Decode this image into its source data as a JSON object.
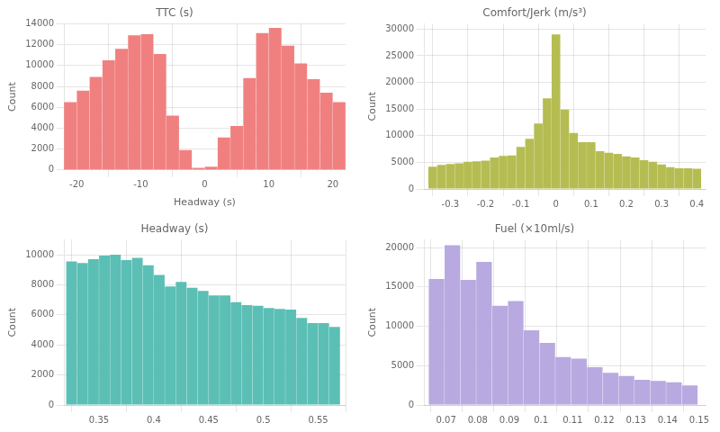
{
  "chart_data": [
    {
      "type": "bar",
      "title": "TTC (s)",
      "xlabel": "Headway (s)",
      "ylabel": "Count",
      "color": "#f08080",
      "x": [
        -21,
        -19,
        -17,
        -15,
        -13,
        -11,
        -9,
        -7,
        -5,
        -3,
        -1,
        1,
        3,
        5,
        7,
        9,
        11,
        13,
        15,
        17,
        19,
        21
      ],
      "values": [
        6500,
        7600,
        8900,
        10500,
        11600,
        12900,
        13000,
        11100,
        5200,
        1900,
        200,
        300,
        3100,
        4200,
        8800,
        13100,
        13600,
        11900,
        10200,
        8700,
        7400,
        6500
      ],
      "xlim": [
        -22,
        22
      ],
      "ylim": [
        0,
        14000
      ],
      "xticks": [
        -20,
        -10,
        0,
        10,
        20
      ],
      "yticks": [
        0,
        2000,
        4000,
        6000,
        8000,
        10000,
        12000,
        14000
      ],
      "grid": true
    },
    {
      "type": "bar",
      "title": "Comfort/Jerk (m/s³)",
      "ylabel": "Count",
      "color": "#b5bd52",
      "x": [
        -0.35,
        -0.325,
        -0.3,
        -0.275,
        -0.25,
        -0.225,
        -0.2,
        -0.175,
        -0.15,
        -0.125,
        -0.1,
        -0.075,
        -0.05,
        -0.025,
        0.0,
        0.025,
        0.05,
        0.075,
        0.1,
        0.125,
        0.15,
        0.175,
        0.2,
        0.225,
        0.25,
        0.275,
        0.3,
        0.325,
        0.35,
        0.375,
        0.4
      ],
      "values": [
        4200,
        4500,
        4700,
        4800,
        5100,
        5200,
        5300,
        5900,
        6200,
        6300,
        7900,
        9400,
        12300,
        17000,
        29000,
        14900,
        10500,
        8800,
        8800,
        7100,
        6800,
        6600,
        6100,
        5900,
        5400,
        5100,
        4600,
        4100,
        3900,
        3900,
        3800
      ],
      "xlim": [
        -0.375,
        0.425
      ],
      "ylim": [
        0,
        31000
      ],
      "xticks": [
        -0.3,
        -0.2,
        -0.1,
        0,
        0.1,
        0.2,
        0.3,
        0.4
      ],
      "yticks": [
        0,
        5000,
        10000,
        15000,
        20000,
        25000,
        30000
      ],
      "grid": true
    },
    {
      "type": "bar",
      "title": "Headway (s)",
      "ylabel": "Count",
      "color": "#5bbfb5",
      "x": [
        0.325,
        0.335,
        0.345,
        0.355,
        0.365,
        0.375,
        0.385,
        0.395,
        0.405,
        0.415,
        0.425,
        0.435,
        0.445,
        0.455,
        0.465,
        0.475,
        0.485,
        0.495,
        0.505,
        0.515,
        0.525,
        0.535,
        0.545,
        0.555,
        0.565
      ],
      "values": [
        9550,
        9450,
        9700,
        9950,
        10000,
        9650,
        9800,
        9300,
        8650,
        7900,
        8200,
        7800,
        7600,
        7300,
        7300,
        6850,
        6650,
        6600,
        6450,
        6400,
        6350,
        5800,
        5450,
        5450,
        5200
      ],
      "xlim": [
        0.318,
        0.575
      ],
      "ylim": [
        0,
        11000
      ],
      "xticks": [
        0.35,
        0.4,
        0.45,
        0.5,
        0.55
      ],
      "yticks": [
        0,
        2000,
        4000,
        6000,
        8000,
        10000
      ],
      "grid": true
    },
    {
      "type": "bar",
      "title": "Fuel (×10ml/s)",
      "ylabel": "Count",
      "color": "#b8a9e0",
      "x": [
        0.067,
        0.072,
        0.077,
        0.082,
        0.087,
        0.092,
        0.097,
        0.102,
        0.107,
        0.112,
        0.117,
        0.122,
        0.127,
        0.132,
        0.137,
        0.142,
        0.147
      ],
      "values": [
        16000,
        20300,
        15900,
        18200,
        12600,
        13200,
        9500,
        7900,
        6100,
        5900,
        4800,
        4100,
        3700,
        3200,
        3050,
        2900,
        2500
      ],
      "xlim": [
        0.063,
        0.152
      ],
      "ylim": [
        0,
        21000
      ],
      "xticks": [
        0.07,
        0.08,
        0.09,
        0.1,
        0.11,
        0.12,
        0.13,
        0.14,
        0.15
      ],
      "yticks": [
        0,
        5000,
        10000,
        15000,
        20000
      ],
      "grid": true
    }
  ]
}
